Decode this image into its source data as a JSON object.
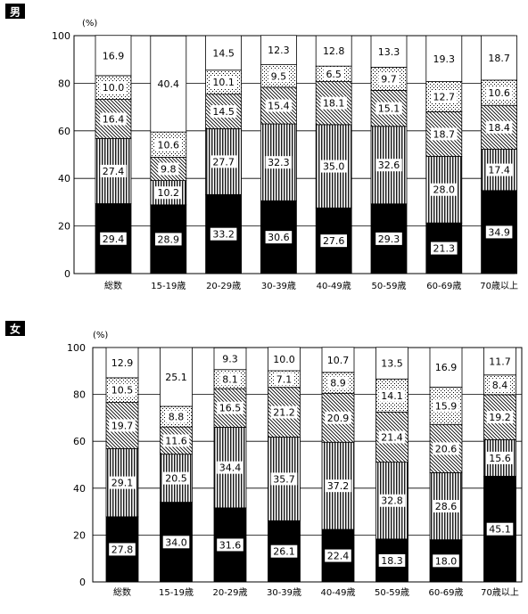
{
  "chart_data": [
    {
      "type": "bar",
      "stacked": true,
      "title": "男",
      "unit_label": "(%)",
      "categories": [
        "総数",
        "15-19歳",
        "20-29歳",
        "30-39歳",
        "40-49歳",
        "50-59歳",
        "60-69歳",
        "70歳以上"
      ],
      "ylim": [
        0,
        100
      ],
      "yticks": [
        0,
        20,
        40,
        60,
        80,
        100
      ],
      "grid": true,
      "series": [
        {
          "values": [
            29.4,
            28.9,
            33.2,
            30.6,
            27.6,
            29.3,
            21.3,
            34.9
          ]
        },
        {
          "values": [
            27.4,
            10.2,
            27.7,
            32.3,
            35.0,
            32.6,
            28.0,
            17.4
          ]
        },
        {
          "values": [
            16.4,
            9.8,
            14.5,
            15.4,
            18.1,
            15.1,
            18.7,
            18.4
          ]
        },
        {
          "values": [
            10.0,
            10.6,
            10.1,
            9.5,
            6.5,
            9.7,
            12.7,
            10.6
          ]
        },
        {
          "values": [
            16.9,
            40.4,
            14.5,
            12.3,
            12.8,
            13.3,
            19.3,
            18.7
          ]
        }
      ],
      "labels": [
        [
          "29.4",
          "28.9",
          "33.2",
          "30.6",
          "27.6",
          "29.3",
          "21.3",
          "34.9"
        ],
        [
          "27.4",
          "10.2",
          "27.7",
          "32.3",
          "35.0",
          "32.6",
          "28.0",
          "17.4"
        ],
        [
          "16.4",
          "9.8",
          "14.5",
          "15.4",
          "18.1",
          "15.1",
          "18.7",
          "18.4"
        ],
        [
          "10.0",
          "10.6",
          "10.1",
          "9.5",
          "6.5",
          "9.7",
          "12.7",
          "10.6"
        ],
        [
          "16.9",
          "40.4",
          "14.5",
          "12.3",
          "12.8",
          "13.3",
          "19.3",
          "18.7"
        ]
      ]
    },
    {
      "type": "bar",
      "stacked": true,
      "title": "女",
      "unit_label": "(%)",
      "categories": [
        "総数",
        "15-19歳",
        "20-29歳",
        "30-39歳",
        "40-49歳",
        "50-59歳",
        "60-69歳",
        "70歳以上"
      ],
      "ylim": [
        0,
        100
      ],
      "yticks": [
        0,
        20,
        40,
        60,
        80,
        100
      ],
      "grid": true,
      "series": [
        {
          "values": [
            27.8,
            34.0,
            31.6,
            26.1,
            22.4,
            18.3,
            18.0,
            45.1
          ]
        },
        {
          "values": [
            29.1,
            20.5,
            34.4,
            35.7,
            37.2,
            32.8,
            28.6,
            15.6
          ]
        },
        {
          "values": [
            19.7,
            11.6,
            16.5,
            21.2,
            20.9,
            21.4,
            20.6,
            19.2
          ]
        },
        {
          "values": [
            10.5,
            8.8,
            8.1,
            7.1,
            8.9,
            14.1,
            15.9,
            8.4
          ]
        },
        {
          "values": [
            12.9,
            25.1,
            9.3,
            10.0,
            10.7,
            13.5,
            16.9,
            11.7
          ]
        }
      ],
      "labels": [
        [
          "27.8",
          "34.0",
          "31.6",
          "26.1",
          "22.4",
          "18.3",
          "18.0",
          "45.1"
        ],
        [
          "29.1",
          "20.5",
          "34.4",
          "35.7",
          "37.2",
          "32.8",
          "28.6",
          "15.6"
        ],
        [
          "19.7",
          "11.6",
          "16.5",
          "21.2",
          "20.9",
          "21.4",
          "20.6",
          "19.2"
        ],
        [
          "10.5",
          "8.8",
          "8.1",
          "7.1",
          "8.9",
          "14.1",
          "15.9",
          "8.4"
        ],
        [
          "12.9",
          "25.1",
          "9.3",
          "10.0",
          "10.7",
          "13.5",
          "16.9",
          "11.7"
        ]
      ]
    }
  ]
}
